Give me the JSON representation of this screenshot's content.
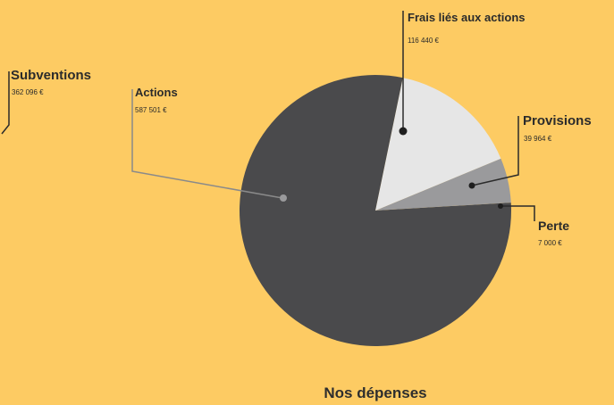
{
  "chart_data": {
    "type": "pie",
    "title": "Nos dépenses",
    "slices": [
      {
        "name": "Actions",
        "value_label": "587 501 €",
        "value": 587501,
        "color": "#4a4a4c"
      },
      {
        "name": "Frais liés aux actions",
        "value_label": "116 440 €",
        "value": 116440,
        "color": "#e6e6e6"
      },
      {
        "name": "Provisions",
        "value_label": "39 964 €",
        "value": 39964,
        "color": "#9a9a9c"
      },
      {
        "name": "Perte",
        "value_label": "7 000 €",
        "value": 7000,
        "color": "#4a4a4c"
      }
    ],
    "side_label": {
      "name": "Subventions",
      "value_label": "362 096 €"
    }
  }
}
